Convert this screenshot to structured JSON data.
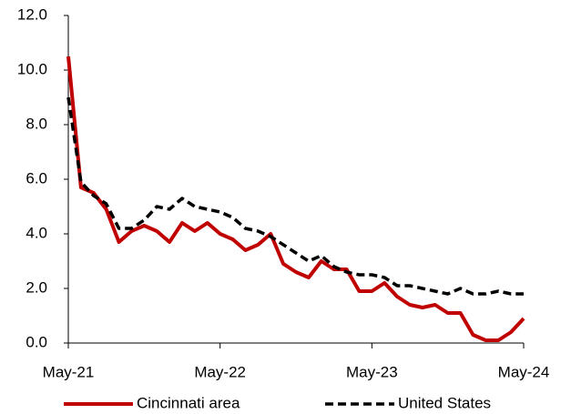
{
  "chart_data": {
    "type": "line",
    "categories": [
      "May-21",
      null,
      null,
      null,
      null,
      null,
      null,
      null,
      null,
      null,
      null,
      null,
      "May-22",
      null,
      null,
      null,
      null,
      null,
      null,
      null,
      null,
      null,
      null,
      null,
      "May-23",
      null,
      null,
      null,
      null,
      null,
      null,
      null,
      null,
      null,
      null,
      null,
      "May-24"
    ],
    "series": [
      {
        "name": "Cincinnati area",
        "color": "#c00000",
        "dash": false,
        "values": [
          10.5,
          5.7,
          5.5,
          4.9,
          3.7,
          4.1,
          4.3,
          4.1,
          3.7,
          4.4,
          4.1,
          4.4,
          4.0,
          3.8,
          3.4,
          3.6,
          4.0,
          2.9,
          2.6,
          2.4,
          3.0,
          2.7,
          2.7,
          1.9,
          1.9,
          2.2,
          1.7,
          1.4,
          1.3,
          1.4,
          1.1,
          1.1,
          0.3,
          0.1,
          0.1,
          0.4,
          0.9
        ]
      },
      {
        "name": "United States",
        "color": "#000000",
        "dash": true,
        "values": [
          9.0,
          5.9,
          5.4,
          5.1,
          4.2,
          4.2,
          4.5,
          5.0,
          4.9,
          5.3,
          5.0,
          4.9,
          4.8,
          4.6,
          4.2,
          4.1,
          3.9,
          3.6,
          3.3,
          3.0,
          3.2,
          2.8,
          2.6,
          2.5,
          2.5,
          2.4,
          2.1,
          2.1,
          2.0,
          1.9,
          1.8,
          2.0,
          1.8,
          1.8,
          1.9,
          1.8,
          1.8
        ]
      }
    ],
    "ylim": [
      0,
      12
    ],
    "yticks": [
      {
        "value": 0,
        "label": "0.0"
      },
      {
        "value": 2,
        "label": "2.0"
      },
      {
        "value": 4,
        "label": "4.0"
      },
      {
        "value": 6,
        "label": "6.0"
      },
      {
        "value": 8,
        "label": "8.0"
      },
      {
        "value": 10,
        "label": "10.0"
      },
      {
        "value": 12,
        "label": "12.0"
      }
    ],
    "grid": false,
    "legend": "bottom"
  }
}
